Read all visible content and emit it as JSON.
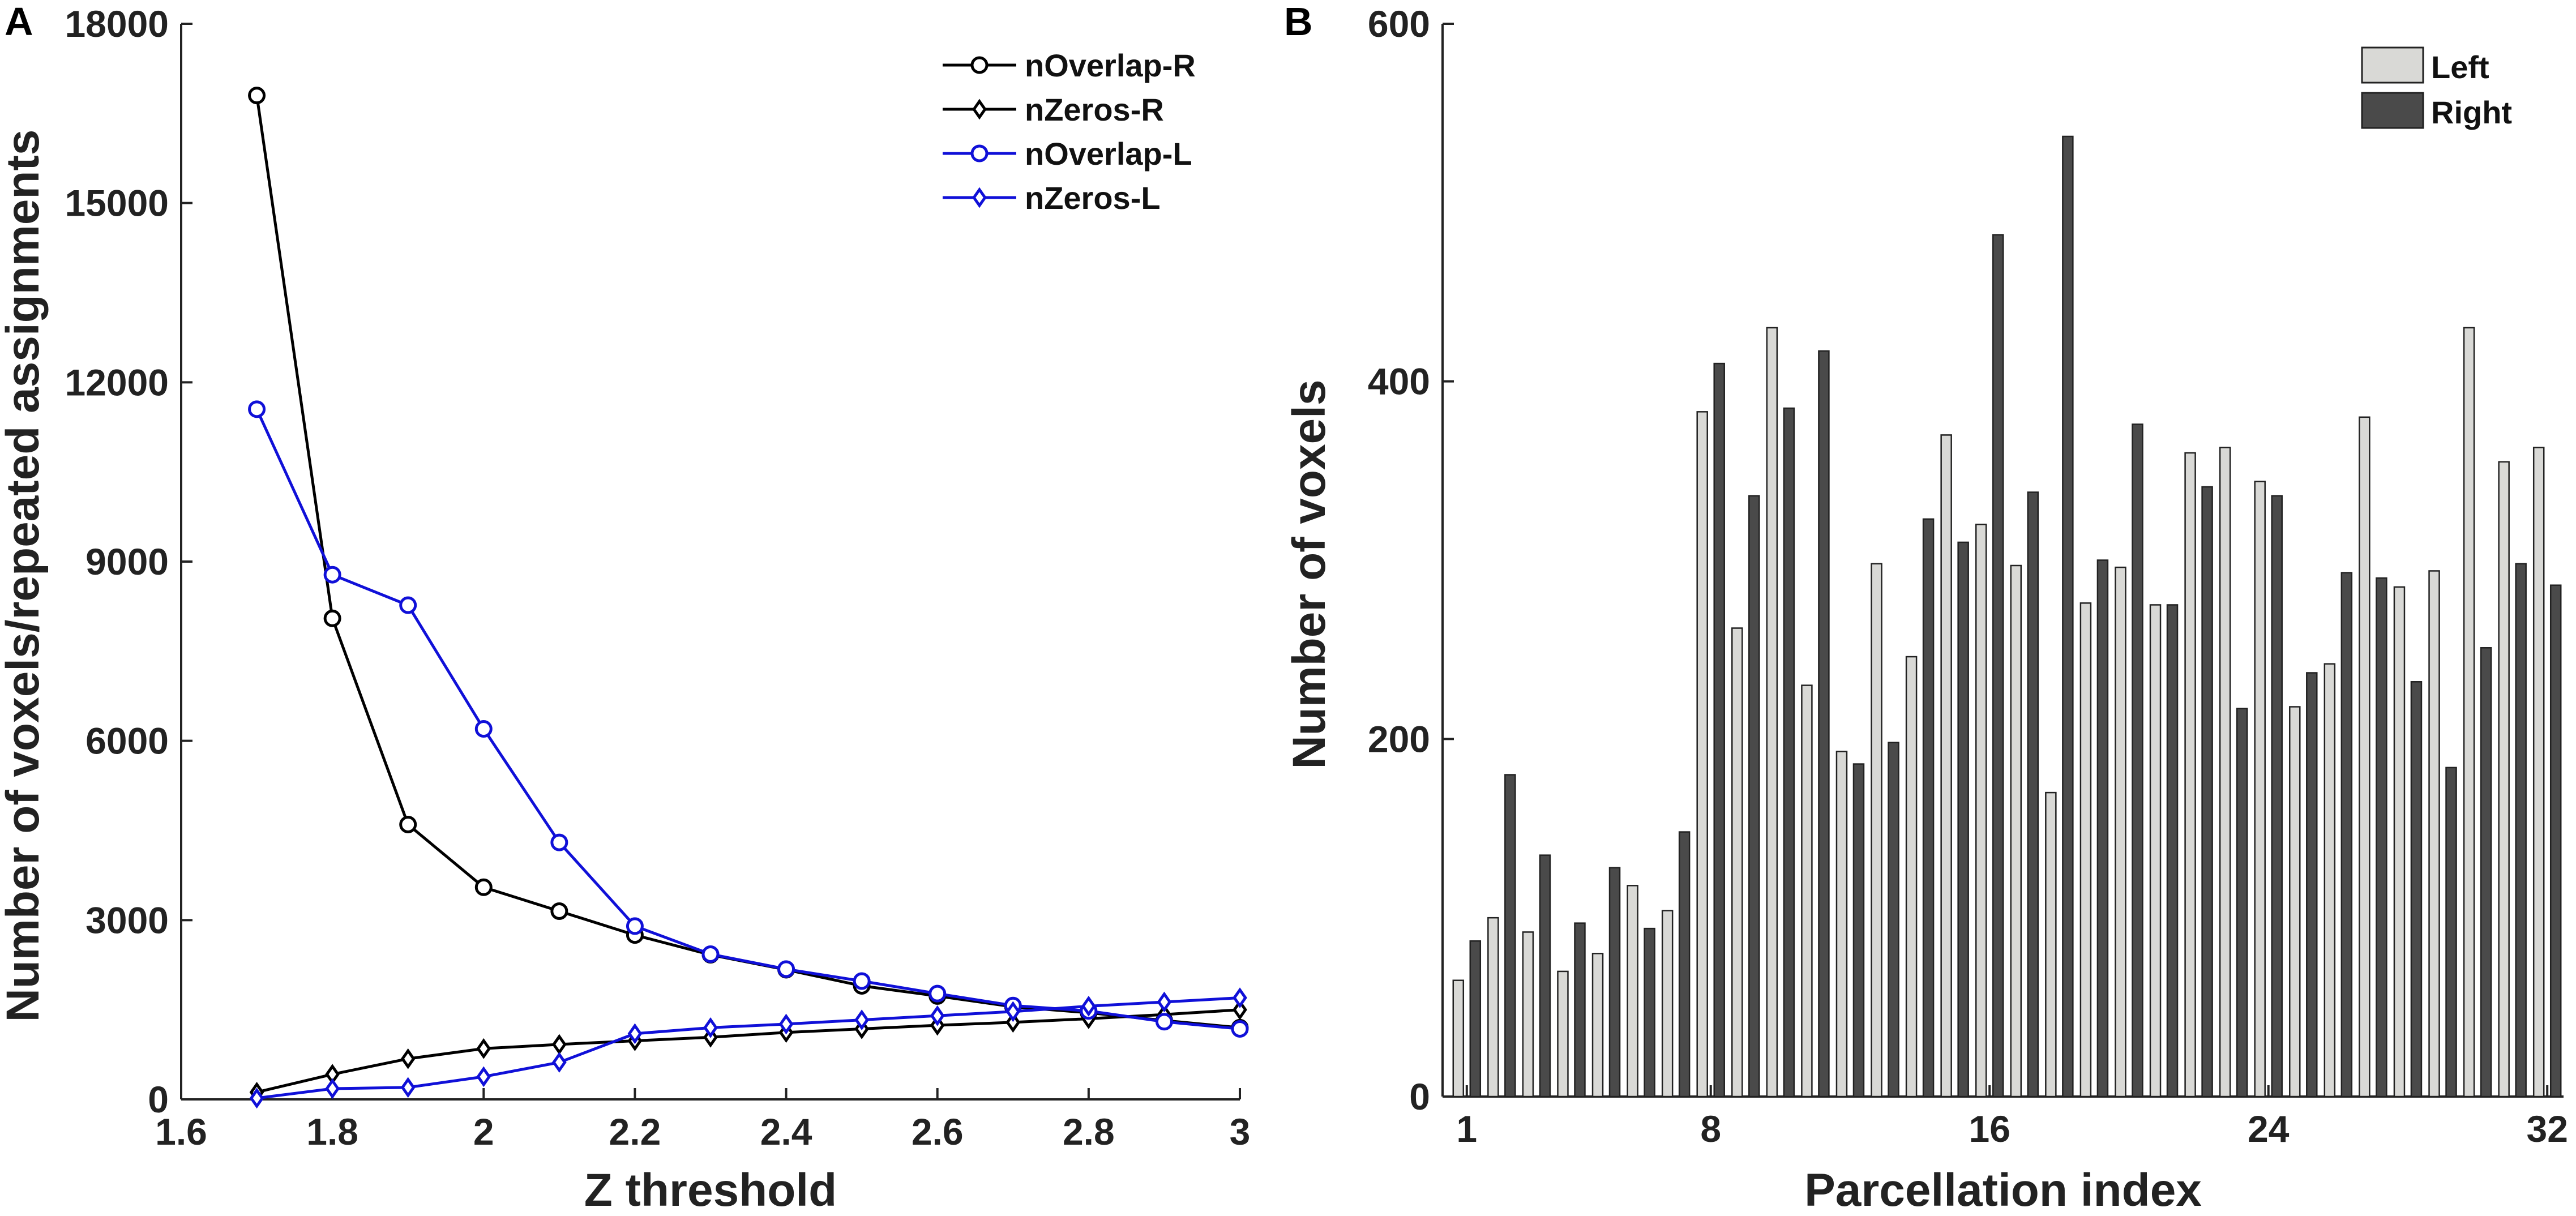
{
  "chart_data": [
    {
      "panel": "A",
      "type": "line",
      "title": "",
      "xlabel": "Z threshold",
      "ylabel": "Number of voxels/repeated assignments",
      "xlim": [
        1.6,
        3.0
      ],
      "ylim": [
        0,
        18000
      ],
      "xticks": [
        "1.6",
        "1.8",
        "2",
        "2.2",
        "2.4",
        "2.6",
        "2.8",
        "3"
      ],
      "yticks": [
        "0",
        "3000",
        "6000",
        "9000",
        "12000",
        "15000",
        "18000"
      ],
      "grid": false,
      "legend_position": "top-right",
      "x": [
        1.7,
        1.8,
        1.9,
        2.0,
        2.1,
        2.2,
        2.3,
        2.4,
        2.5,
        2.6,
        2.7,
        2.8,
        2.9,
        3.0
      ],
      "series": [
        {
          "name": "nOverlap-R",
          "color": "#000000",
          "marker": "circle",
          "values": [
            16800,
            8050,
            4600,
            3550,
            3150,
            2750,
            2420,
            2170,
            1900,
            1730,
            1550,
            1450,
            1320,
            1200
          ]
        },
        {
          "name": "nZeros-R",
          "color": "#000000",
          "marker": "diamond",
          "values": [
            120,
            420,
            680,
            850,
            920,
            980,
            1040,
            1120,
            1180,
            1240,
            1290,
            1350,
            1420,
            1500
          ]
        },
        {
          "name": "nOverlap-L",
          "color": "#1010d8",
          "marker": "circle",
          "values": [
            11550,
            8780,
            8270,
            6200,
            4300,
            2900,
            2430,
            2180,
            1980,
            1770,
            1570,
            1480,
            1300,
            1180
          ]
        },
        {
          "name": "nZeros-L",
          "color": "#1010d8",
          "marker": "diamond",
          "values": [
            20,
            180,
            200,
            380,
            620,
            1100,
            1200,
            1260,
            1330,
            1400,
            1470,
            1560,
            1630,
            1700
          ]
        }
      ]
    },
    {
      "panel": "B",
      "type": "bar",
      "title": "",
      "xlabel": "Parcellation index",
      "ylabel": "Number of voxels",
      "ylim": [
        0,
        600
      ],
      "yticks": [
        "0",
        "200",
        "400",
        "600"
      ],
      "xticks": [
        "1",
        "8",
        "16",
        "24",
        "32"
      ],
      "grid": false,
      "legend_position": "top-right",
      "categories": [
        "1",
        "2",
        "3",
        "4",
        "5",
        "6",
        "7",
        "8",
        "9",
        "10",
        "11",
        "12",
        "13",
        "14",
        "15",
        "16",
        "17",
        "18",
        "19",
        "20",
        "21",
        "22",
        "23",
        "24",
        "25",
        "26",
        "27",
        "28",
        "29",
        "30",
        "31",
        "32"
      ],
      "series": [
        {
          "name": "Left",
          "color": "#d9d9d6",
          "values": [
            65,
            100,
            92,
            70,
            80,
            118,
            104,
            383,
            262,
            430,
            230,
            193,
            298,
            246,
            370,
            320,
            297,
            170,
            276,
            296,
            275,
            360,
            363,
            344,
            218,
            242,
            380,
            285,
            294,
            430,
            355,
            363
          ]
        },
        {
          "name": "Right",
          "color": "#4a4a4a",
          "values": [
            87,
            180,
            135,
            97,
            128,
            94,
            148,
            410,
            336,
            385,
            417,
            186,
            198,
            323,
            310,
            482,
            338,
            537,
            300,
            376,
            275,
            341,
            217,
            336,
            237,
            293,
            290,
            232,
            184,
            251,
            298,
            286
          ]
        }
      ]
    }
  ],
  "labels": {
    "panel_a": "A",
    "panel_b": "B"
  }
}
